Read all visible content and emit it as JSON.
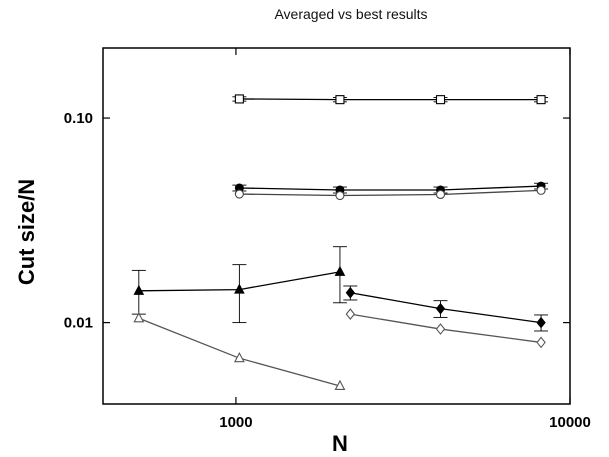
{
  "chart_data": {
    "type": "line",
    "title": "Averaged vs best results",
    "xlabel": "N",
    "ylabel": "Cut size/N",
    "xscale": "log",
    "yscale": "log",
    "xlim": [
      400,
      10000
    ],
    "ylim": [
      0.004,
      0.22
    ],
    "x_ticks": [
      {
        "value": 1000,
        "label": "1000"
      },
      {
        "value": 10000,
        "label": "10000"
      }
    ],
    "y_ticks": [
      {
        "value": 0.01,
        "label": "0.01"
      },
      {
        "value": 0.1,
        "label": "0.10"
      }
    ],
    "grid": false,
    "legend": "none",
    "series": [
      {
        "marker": "square-open",
        "color": "#000000",
        "x": [
          1024,
          2048,
          4096,
          8192
        ],
        "y": [
          0.124,
          0.123,
          0.123,
          0.123
        ],
        "y_err": [
          0.003,
          0.003,
          0.003,
          0.003
        ]
      },
      {
        "marker": "circle-filled",
        "color": "#000000",
        "x": [
          1024,
          2048,
          4096,
          8192
        ],
        "y": [
          0.0455,
          0.0445,
          0.0445,
          0.0465
        ],
        "y_err": [
          0.0015,
          0.0015,
          0.0015,
          0.0015
        ]
      },
      {
        "marker": "circle-open",
        "color": "#444444",
        "x": [
          1024,
          2048,
          4096,
          8192
        ],
        "y": [
          0.0425,
          0.0418,
          0.0423,
          0.0443
        ]
      },
      {
        "marker": "triangle-filled",
        "color": "#000000",
        "x": [
          512,
          1024,
          2048
        ],
        "y": [
          0.0143,
          0.0145,
          0.0177
        ],
        "y_err_low": [
          0.0033,
          0.0045,
          0.0052
        ],
        "y_err_high": [
          0.0037,
          0.0047,
          0.0058
        ]
      },
      {
        "marker": "diamond-filled",
        "color": "#000000",
        "x": [
          2200,
          4096,
          8192
        ],
        "y": [
          0.014,
          0.0117,
          0.01
        ],
        "y_err": [
          0.0011,
          0.0011,
          0.0009
        ]
      },
      {
        "marker": "triangle-open",
        "color": "#555555",
        "x": [
          512,
          1024,
          2048
        ],
        "y": [
          0.0105,
          0.0067,
          0.0049
        ]
      },
      {
        "marker": "diamond-open",
        "color": "#555555",
        "x": [
          2200,
          4096,
          8192
        ],
        "y": [
          0.011,
          0.0093,
          0.008
        ]
      }
    ]
  }
}
